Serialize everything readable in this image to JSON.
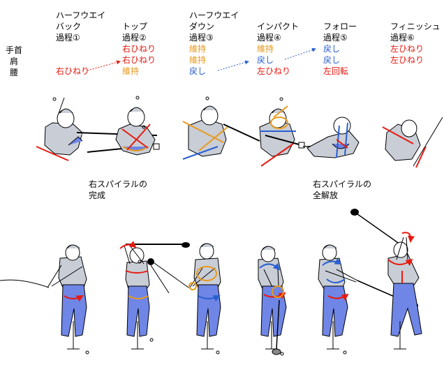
{
  "row_labels": [
    "手首",
    "肩",
    "腰"
  ],
  "phases": [
    {
      "name_line1": "ハーフウエイ",
      "name_line2": "バック",
      "step": "過程①",
      "wrist": "",
      "shoulder": "",
      "hip": "右ひねり",
      "wrist_color": "",
      "shoulder_color": "",
      "hip_color": "#e8190f"
    },
    {
      "name_line1": "",
      "name_line2": "トップ",
      "step": "過程②",
      "wrist": "右ひねり",
      "shoulder": "右ひねり",
      "hip": "維持",
      "wrist_color": "#e8190f",
      "shoulder_color": "#e8190f",
      "hip_color": "#e89a1c"
    },
    {
      "name_line1": "ハーフウエイ",
      "name_line2": "ダウン",
      "step": "過程③",
      "wrist": "維持",
      "shoulder": "維持",
      "hip": "戻し",
      "wrist_color": "#e89a1c",
      "shoulder_color": "#e89a1c",
      "hip_color": "#2a5fd0"
    },
    {
      "name_line1": "",
      "name_line2": "インパクト",
      "step": "過程④",
      "wrist": "維持",
      "shoulder": "戻し",
      "hip": "左ひねり",
      "wrist_color": "#e89a1c",
      "shoulder_color": "#2a5fd0",
      "hip_color": "#e8190f"
    },
    {
      "name_line1": "",
      "name_line2": "フォロー",
      "step": "過程⑤",
      "wrist": "戻し",
      "shoulder": "戻し",
      "hip": "左回転",
      "wrist_color": "#2a5fd0",
      "shoulder_color": "#2a5fd0",
      "hip_color": "#e8190f"
    },
    {
      "name_line1": "",
      "name_line2": "フィニッシュ",
      "step": "過程⑥",
      "wrist": "左ひねり",
      "shoulder": "左ひねり",
      "hip": "",
      "wrist_color": "#e8190f",
      "shoulder_color": "#e8190f",
      "hip_color": ""
    }
  ],
  "captions": {
    "spiral_complete_line1": "右スパイラルの",
    "spiral_complete_line2": "完成",
    "spiral_release_line1": "右スパイラルの",
    "spiral_release_line2": "全解放"
  },
  "colors": {
    "red": "#e8190f",
    "orange": "#e89a1c",
    "blue": "#2a5fd0",
    "shirt": "#c9cdd6",
    "pants": "#6f86e6",
    "skin": "#ffffff"
  }
}
